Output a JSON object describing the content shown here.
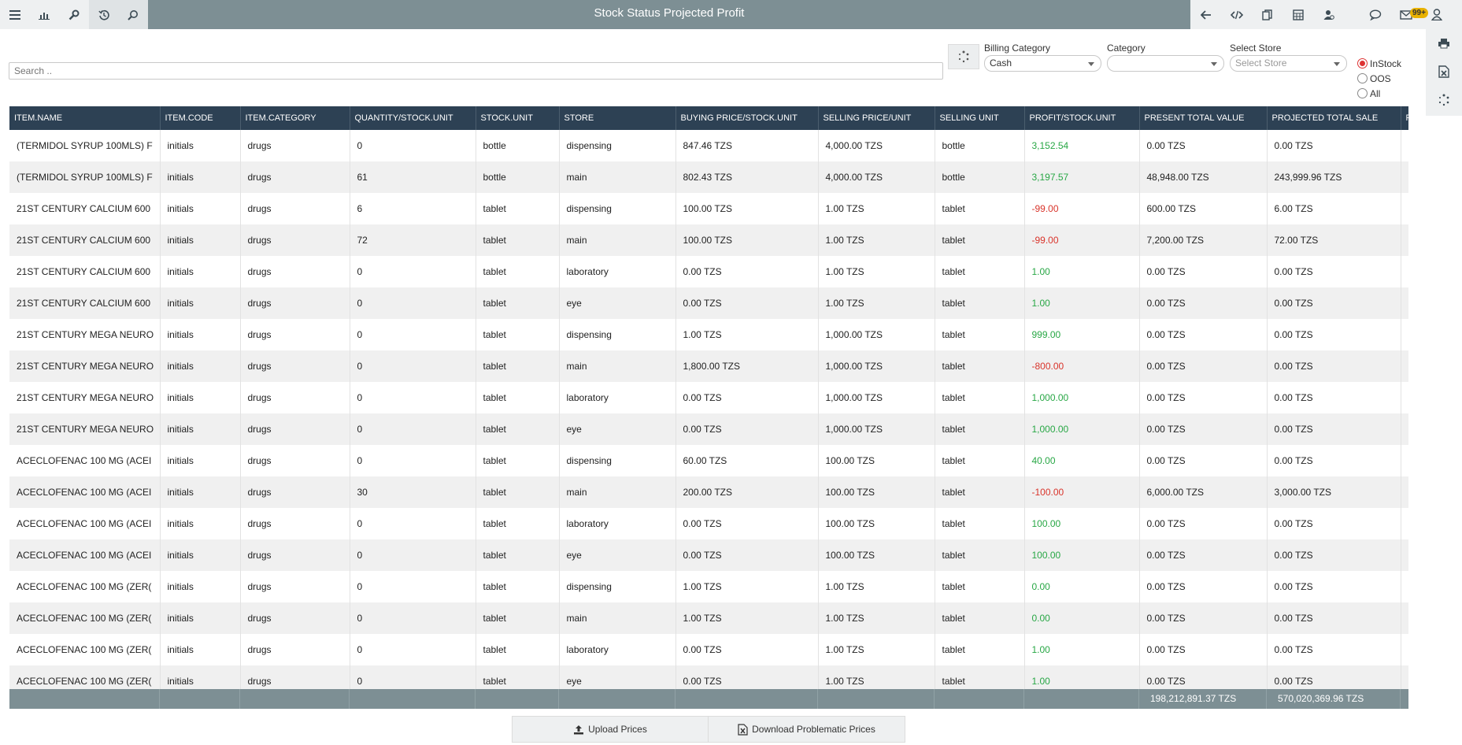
{
  "window": {
    "title": "Stock Status Projected Profit"
  },
  "topbar": {
    "left_icons": [
      "menu-icon",
      "bar-chart-icon",
      "tools-icon",
      "history-icon",
      "search-icon"
    ],
    "right_icons": [
      "arrow-left-icon",
      "code-icon",
      "copy-icon",
      "calculator-icon",
      "user-help-icon",
      "chat-icon",
      "mail-icon",
      "profile-icon"
    ],
    "notification_count": "99+"
  },
  "side_rail": {
    "icons": [
      "print-icon",
      "excel-icon",
      "spinner-icon"
    ]
  },
  "filters": {
    "search_placeholder": "Search ..",
    "billing_category": {
      "label": "Billing Category",
      "value": "Cash"
    },
    "category": {
      "label": "Category",
      "value": ""
    },
    "store": {
      "label": "Select Store",
      "placeholder": "Select Store"
    },
    "stock_filter": {
      "options": [
        "InStock",
        "OOS",
        "All"
      ],
      "selected": "InStock"
    }
  },
  "table": {
    "columns": [
      "ITEM.NAME",
      "ITEM.CODE",
      "ITEM.CATEGORY",
      "QUANTITY/STOCK.UNIT",
      "STOCK.UNIT",
      "STORE",
      "BUYING PRICE/STOCK.UNIT",
      "SELLING PRICE/UNIT",
      "SELLING UNIT",
      "PROFIT/STOCK.UNIT",
      "PRESENT TOTAL VALUE",
      "PROJECTED TOTAL SALE",
      "P"
    ],
    "rows": [
      [
        "(TERMIDOL SYRUP 100MLS) F",
        "initials",
        "drugs",
        "0",
        "bottle",
        "dispensing",
        "847.46 TZS",
        "4,000.00 TZS",
        "bottle",
        "3,152.54",
        "0.00 TZS",
        "0.00 TZS"
      ],
      [
        "(TERMIDOL SYRUP 100MLS) F",
        "initials",
        "drugs",
        "61",
        "bottle",
        "main",
        "802.43 TZS",
        "4,000.00 TZS",
        "bottle",
        "3,197.57",
        "48,948.00 TZS",
        "243,999.96 TZS"
      ],
      [
        "21ST CENTURY CALCIUM 600",
        "initials",
        "drugs",
        "6",
        "tablet",
        "dispensing",
        "100.00 TZS",
        "1.00 TZS",
        "tablet",
        "-99.00",
        "600.00 TZS",
        "6.00 TZS"
      ],
      [
        "21ST CENTURY CALCIUM 600",
        "initials",
        "drugs",
        "72",
        "tablet",
        "main",
        "100.00 TZS",
        "1.00 TZS",
        "tablet",
        "-99.00",
        "7,200.00 TZS",
        "72.00 TZS"
      ],
      [
        "21ST CENTURY CALCIUM 600",
        "initials",
        "drugs",
        "0",
        "tablet",
        "laboratory",
        "0.00 TZS",
        "1.00 TZS",
        "tablet",
        "1.00",
        "0.00 TZS",
        "0.00 TZS"
      ],
      [
        "21ST CENTURY CALCIUM 600",
        "initials",
        "drugs",
        "0",
        "tablet",
        "eye",
        "0.00 TZS",
        "1.00 TZS",
        "tablet",
        "1.00",
        "0.00 TZS",
        "0.00 TZS"
      ],
      [
        "21ST CENTURY MEGA NEURO",
        "initials",
        "drugs",
        "0",
        "tablet",
        "dispensing",
        "1.00 TZS",
        "1,000.00 TZS",
        "tablet",
        "999.00",
        "0.00 TZS",
        "0.00 TZS"
      ],
      [
        "21ST CENTURY MEGA NEURO",
        "initials",
        "drugs",
        "0",
        "tablet",
        "main",
        "1,800.00 TZS",
        "1,000.00 TZS",
        "tablet",
        "-800.00",
        "0.00 TZS",
        "0.00 TZS"
      ],
      [
        "21ST CENTURY MEGA NEURO",
        "initials",
        "drugs",
        "0",
        "tablet",
        "laboratory",
        "0.00 TZS",
        "1,000.00 TZS",
        "tablet",
        "1,000.00",
        "0.00 TZS",
        "0.00 TZS"
      ],
      [
        "21ST CENTURY MEGA NEURO",
        "initials",
        "drugs",
        "0",
        "tablet",
        "eye",
        "0.00 TZS",
        "1,000.00 TZS",
        "tablet",
        "1,000.00",
        "0.00 TZS",
        "0.00 TZS"
      ],
      [
        "ACECLOFENAC 100 MG (ACEI",
        "initials",
        "drugs",
        "0",
        "tablet",
        "dispensing",
        "60.00 TZS",
        "100.00 TZS",
        "tablet",
        "40.00",
        "0.00 TZS",
        "0.00 TZS"
      ],
      [
        "ACECLOFENAC 100 MG (ACEI",
        "initials",
        "drugs",
        "30",
        "tablet",
        "main",
        "200.00 TZS",
        "100.00 TZS",
        "tablet",
        "-100.00",
        "6,000.00 TZS",
        "3,000.00 TZS"
      ],
      [
        "ACECLOFENAC 100 MG (ACEI",
        "initials",
        "drugs",
        "0",
        "tablet",
        "laboratory",
        "0.00 TZS",
        "100.00 TZS",
        "tablet",
        "100.00",
        "0.00 TZS",
        "0.00 TZS"
      ],
      [
        "ACECLOFENAC 100 MG (ACEI",
        "initials",
        "drugs",
        "0",
        "tablet",
        "eye",
        "0.00 TZS",
        "100.00 TZS",
        "tablet",
        "100.00",
        "0.00 TZS",
        "0.00 TZS"
      ],
      [
        "ACECLOFENAC 100 MG (ZER(",
        "initials",
        "drugs",
        "0",
        "tablet",
        "dispensing",
        "1.00 TZS",
        "1.00 TZS",
        "tablet",
        "0.00",
        "0.00 TZS",
        "0.00 TZS"
      ],
      [
        "ACECLOFENAC 100 MG (ZER(",
        "initials",
        "drugs",
        "0",
        "tablet",
        "main",
        "1.00 TZS",
        "1.00 TZS",
        "tablet",
        "0.00",
        "0.00 TZS",
        "0.00 TZS"
      ],
      [
        "ACECLOFENAC 100 MG (ZER(",
        "initials",
        "drugs",
        "0",
        "tablet",
        "laboratory",
        "0.00 TZS",
        "1.00 TZS",
        "tablet",
        "1.00",
        "0.00 TZS",
        "0.00 TZS"
      ],
      [
        "ACECLOFENAC 100 MG (ZER(",
        "initials",
        "drugs",
        "0",
        "tablet",
        "eye",
        "0.00 TZS",
        "1.00 TZS",
        "tablet",
        "1.00",
        "0.00 TZS",
        "0.00 TZS"
      ]
    ],
    "totals": {
      "present_total_value": "198,212,891.37 TZS",
      "projected_total_sale": "570,020,369.96 TZS"
    }
  },
  "actions": {
    "upload_label": "Upload Prices",
    "download_label": "Download Problematic Prices"
  },
  "colors": {
    "header_bg": "#2d4154",
    "topbar_bg": "#7d8f94",
    "profit_positive": "#28a745",
    "profit_negative": "#d9342b"
  }
}
